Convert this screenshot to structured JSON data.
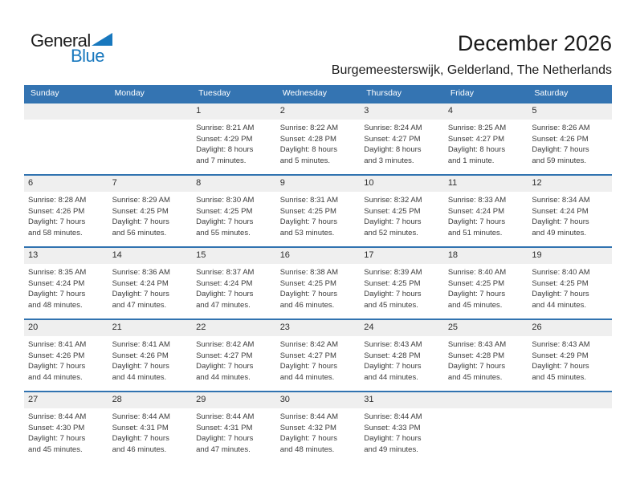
{
  "logo": {
    "part1": "General",
    "part2": "Blue",
    "triangle_color": "#1878BE"
  },
  "header": {
    "title": "December 2026",
    "subtitle": "Burgemeesterswijk, Gelderland, The Netherlands"
  },
  "colors": {
    "weekday_header_bg": "#3474B2",
    "week_separator": "#3173B0",
    "day_stripe_bg": "#EFEFEF",
    "cell_text": "#3B3B3B"
  },
  "calendar": {
    "day_headers": [
      "Sunday",
      "Monday",
      "Tuesday",
      "Wednesday",
      "Thursday",
      "Friday",
      "Saturday"
    ],
    "weeks": [
      [
        {},
        {},
        {
          "day": "1",
          "sunrise": "Sunrise: 8:21 AM",
          "sunset": "Sunset: 4:29 PM",
          "daylight1": "Daylight: 8 hours",
          "daylight2": "and 7 minutes."
        },
        {
          "day": "2",
          "sunrise": "Sunrise: 8:22 AM",
          "sunset": "Sunset: 4:28 PM",
          "daylight1": "Daylight: 8 hours",
          "daylight2": "and 5 minutes."
        },
        {
          "day": "3",
          "sunrise": "Sunrise: 8:24 AM",
          "sunset": "Sunset: 4:27 PM",
          "daylight1": "Daylight: 8 hours",
          "daylight2": "and 3 minutes."
        },
        {
          "day": "4",
          "sunrise": "Sunrise: 8:25 AM",
          "sunset": "Sunset: 4:27 PM",
          "daylight1": "Daylight: 8 hours",
          "daylight2": "and 1 minute."
        },
        {
          "day": "5",
          "sunrise": "Sunrise: 8:26 AM",
          "sunset": "Sunset: 4:26 PM",
          "daylight1": "Daylight: 7 hours",
          "daylight2": "and 59 minutes."
        }
      ],
      [
        {
          "day": "6",
          "sunrise": "Sunrise: 8:28 AM",
          "sunset": "Sunset: 4:26 PM",
          "daylight1": "Daylight: 7 hours",
          "daylight2": "and 58 minutes."
        },
        {
          "day": "7",
          "sunrise": "Sunrise: 8:29 AM",
          "sunset": "Sunset: 4:25 PM",
          "daylight1": "Daylight: 7 hours",
          "daylight2": "and 56 minutes."
        },
        {
          "day": "8",
          "sunrise": "Sunrise: 8:30 AM",
          "sunset": "Sunset: 4:25 PM",
          "daylight1": "Daylight: 7 hours",
          "daylight2": "and 55 minutes."
        },
        {
          "day": "9",
          "sunrise": "Sunrise: 8:31 AM",
          "sunset": "Sunset: 4:25 PM",
          "daylight1": "Daylight: 7 hours",
          "daylight2": "and 53 minutes."
        },
        {
          "day": "10",
          "sunrise": "Sunrise: 8:32 AM",
          "sunset": "Sunset: 4:25 PM",
          "daylight1": "Daylight: 7 hours",
          "daylight2": "and 52 minutes."
        },
        {
          "day": "11",
          "sunrise": "Sunrise: 8:33 AM",
          "sunset": "Sunset: 4:24 PM",
          "daylight1": "Daylight: 7 hours",
          "daylight2": "and 51 minutes."
        },
        {
          "day": "12",
          "sunrise": "Sunrise: 8:34 AM",
          "sunset": "Sunset: 4:24 PM",
          "daylight1": "Daylight: 7 hours",
          "daylight2": "and 49 minutes."
        }
      ],
      [
        {
          "day": "13",
          "sunrise": "Sunrise: 8:35 AM",
          "sunset": "Sunset: 4:24 PM",
          "daylight1": "Daylight: 7 hours",
          "daylight2": "and 48 minutes."
        },
        {
          "day": "14",
          "sunrise": "Sunrise: 8:36 AM",
          "sunset": "Sunset: 4:24 PM",
          "daylight1": "Daylight: 7 hours",
          "daylight2": "and 47 minutes."
        },
        {
          "day": "15",
          "sunrise": "Sunrise: 8:37 AM",
          "sunset": "Sunset: 4:24 PM",
          "daylight1": "Daylight: 7 hours",
          "daylight2": "and 47 minutes."
        },
        {
          "day": "16",
          "sunrise": "Sunrise: 8:38 AM",
          "sunset": "Sunset: 4:25 PM",
          "daylight1": "Daylight: 7 hours",
          "daylight2": "and 46 minutes."
        },
        {
          "day": "17",
          "sunrise": "Sunrise: 8:39 AM",
          "sunset": "Sunset: 4:25 PM",
          "daylight1": "Daylight: 7 hours",
          "daylight2": "and 45 minutes."
        },
        {
          "day": "18",
          "sunrise": "Sunrise: 8:40 AM",
          "sunset": "Sunset: 4:25 PM",
          "daylight1": "Daylight: 7 hours",
          "daylight2": "and 45 minutes."
        },
        {
          "day": "19",
          "sunrise": "Sunrise: 8:40 AM",
          "sunset": "Sunset: 4:25 PM",
          "daylight1": "Daylight: 7 hours",
          "daylight2": "and 44 minutes."
        }
      ],
      [
        {
          "day": "20",
          "sunrise": "Sunrise: 8:41 AM",
          "sunset": "Sunset: 4:26 PM",
          "daylight1": "Daylight: 7 hours",
          "daylight2": "and 44 minutes."
        },
        {
          "day": "21",
          "sunrise": "Sunrise: 8:41 AM",
          "sunset": "Sunset: 4:26 PM",
          "daylight1": "Daylight: 7 hours",
          "daylight2": "and 44 minutes."
        },
        {
          "day": "22",
          "sunrise": "Sunrise: 8:42 AM",
          "sunset": "Sunset: 4:27 PM",
          "daylight1": "Daylight: 7 hours",
          "daylight2": "and 44 minutes."
        },
        {
          "day": "23",
          "sunrise": "Sunrise: 8:42 AM",
          "sunset": "Sunset: 4:27 PM",
          "daylight1": "Daylight: 7 hours",
          "daylight2": "and 44 minutes."
        },
        {
          "day": "24",
          "sunrise": "Sunrise: 8:43 AM",
          "sunset": "Sunset: 4:28 PM",
          "daylight1": "Daylight: 7 hours",
          "daylight2": "and 44 minutes."
        },
        {
          "day": "25",
          "sunrise": "Sunrise: 8:43 AM",
          "sunset": "Sunset: 4:28 PM",
          "daylight1": "Daylight: 7 hours",
          "daylight2": "and 45 minutes."
        },
        {
          "day": "26",
          "sunrise": "Sunrise: 8:43 AM",
          "sunset": "Sunset: 4:29 PM",
          "daylight1": "Daylight: 7 hours",
          "daylight2": "and 45 minutes."
        }
      ],
      [
        {
          "day": "27",
          "sunrise": "Sunrise: 8:44 AM",
          "sunset": "Sunset: 4:30 PM",
          "daylight1": "Daylight: 7 hours",
          "daylight2": "and 45 minutes."
        },
        {
          "day": "28",
          "sunrise": "Sunrise: 8:44 AM",
          "sunset": "Sunset: 4:31 PM",
          "daylight1": "Daylight: 7 hours",
          "daylight2": "and 46 minutes."
        },
        {
          "day": "29",
          "sunrise": "Sunrise: 8:44 AM",
          "sunset": "Sunset: 4:31 PM",
          "daylight1": "Daylight: 7 hours",
          "daylight2": "and 47 minutes."
        },
        {
          "day": "30",
          "sunrise": "Sunrise: 8:44 AM",
          "sunset": "Sunset: 4:32 PM",
          "daylight1": "Daylight: 7 hours",
          "daylight2": "and 48 minutes."
        },
        {
          "day": "31",
          "sunrise": "Sunrise: 8:44 AM",
          "sunset": "Sunset: 4:33 PM",
          "daylight1": "Daylight: 7 hours",
          "daylight2": "and 49 minutes."
        },
        {},
        {}
      ]
    ]
  }
}
